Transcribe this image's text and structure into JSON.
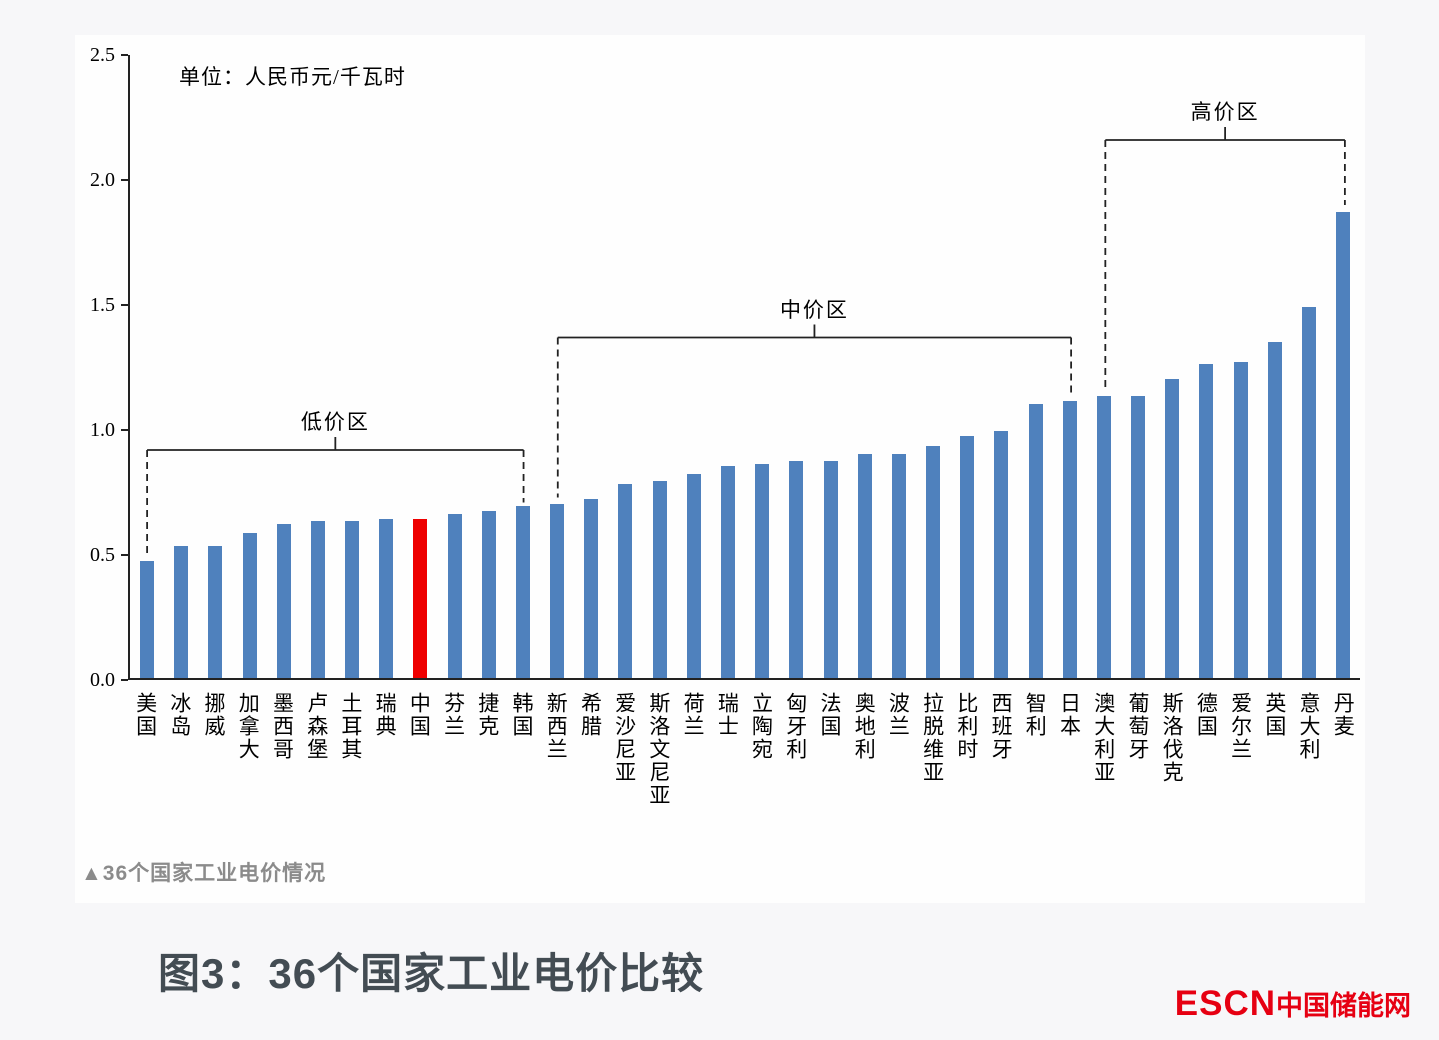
{
  "caption": "▲36个国家工业电价情况",
  "figure_title": "图3：36个国家工业电价比较",
  "logo": {
    "en": "ESCN",
    "cn": "中国储能网"
  },
  "colors": {
    "bar": "#4f81bd",
    "highlight": "#ee0000",
    "axis": "#222222",
    "logo_red": "#e60012",
    "title_gray": "#434c53",
    "caption_gray": "#8b8b8b"
  },
  "chart_data": {
    "type": "bar",
    "title": "",
    "xlabel": "",
    "ylabel": "",
    "unit_label": "单位：人民币元/千瓦时",
    "grid": false,
    "ylim": [
      0,
      2.5
    ],
    "y_ticks": [
      "0.0",
      "0.5",
      "1.0",
      "1.5",
      "2.0",
      "2.5"
    ],
    "categories": [
      "美国",
      "冰岛",
      "挪威",
      "加拿大",
      "墨西哥",
      "卢森堡",
      "土耳其",
      "瑞典",
      "中国",
      "芬兰",
      "捷克",
      "韩国",
      "新西兰",
      "希腊",
      "爱沙尼亚",
      "斯洛文尼亚",
      "荷兰",
      "瑞士",
      "立陶宛",
      "匈牙利",
      "法国",
      "奥地利",
      "波兰",
      "拉脱维亚",
      "比利时",
      "西班牙",
      "智利",
      "日本",
      "澳大利亚",
      "葡萄牙",
      "斯洛伐克",
      "德国",
      "爱尔兰",
      "英国",
      "意大利",
      "丹麦"
    ],
    "values": [
      0.47,
      0.53,
      0.53,
      0.58,
      0.62,
      0.63,
      0.63,
      0.64,
      0.64,
      0.66,
      0.67,
      0.69,
      0.7,
      0.72,
      0.78,
      0.79,
      0.82,
      0.85,
      0.86,
      0.87,
      0.87,
      0.9,
      0.9,
      0.93,
      0.97,
      0.99,
      1.1,
      1.11,
      1.13,
      1.13,
      1.2,
      1.26,
      1.27,
      1.35,
      1.49,
      1.87
    ],
    "highlight_category": "中国",
    "highlight_index": 8,
    "annotations": [
      {
        "label": "低价区",
        "start_index": 0,
        "end_index": 11,
        "line_value": 0.92,
        "left_drop_value": 0.49,
        "right_drop_value": 0.71
      },
      {
        "label": "中价区",
        "start_index": 12,
        "end_index": 27,
        "line_value": 1.37,
        "left_drop_value": 0.73,
        "right_drop_value": 1.13
      },
      {
        "label": "高价区",
        "start_index": 28,
        "end_index": 35,
        "line_value": 2.16,
        "left_drop_value": 1.16,
        "right_drop_value": 1.9
      }
    ]
  }
}
